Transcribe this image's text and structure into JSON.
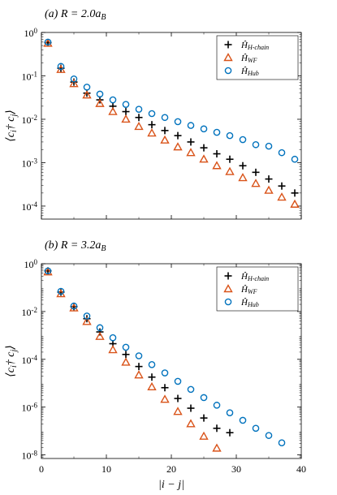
{
  "chart_data": [
    {
      "type": "scatter",
      "title": "(a) R = 2.0a_B",
      "xlabel": "|i − j|",
      "ylabel": "⟨c_i† c_j⟩",
      "xlim": [
        0,
        40
      ],
      "ylim": [
        5e-05,
        1
      ],
      "yscale": "log",
      "xticks": [
        "0",
        "10",
        "20",
        "30",
        "40"
      ],
      "yticks": [
        "10^0",
        "10^-1",
        "10^-2",
        "10^-3",
        "10^-4"
      ],
      "legend_position": "top-right",
      "series": [
        {
          "name": "Ĥ_H-chain",
          "marker": "plus",
          "color": "#000000",
          "x": [
            1,
            3,
            5,
            7,
            9,
            11,
            13,
            15,
            17,
            19,
            21,
            23,
            25,
            27,
            29,
            31,
            33,
            35,
            37,
            39
          ],
          "y": [
            0.58,
            0.15,
            0.072,
            0.04,
            0.028,
            0.02,
            0.015,
            0.011,
            0.0075,
            0.0055,
            0.0042,
            0.003,
            0.0022,
            0.0016,
            0.0012,
            0.00085,
            0.0006,
            0.00042,
            0.00029,
            0.0002
          ]
        },
        {
          "name": "Ĥ_WF",
          "marker": "triangle",
          "color": "#d95319",
          "x": [
            1,
            3,
            5,
            7,
            9,
            11,
            13,
            15,
            17,
            19,
            21,
            23,
            25,
            27,
            29,
            31,
            33,
            35,
            37,
            39
          ],
          "y": [
            0.56,
            0.14,
            0.066,
            0.036,
            0.023,
            0.015,
            0.01,
            0.0068,
            0.0048,
            0.0033,
            0.0023,
            0.0017,
            0.0012,
            0.00085,
            0.00062,
            0.00045,
            0.00033,
            0.00023,
            0.00016,
            0.00011
          ]
        },
        {
          "name": "Ĥ_Hub",
          "marker": "circle",
          "color": "#0072bd",
          "x": [
            1,
            3,
            5,
            7,
            9,
            11,
            13,
            15,
            17,
            19,
            21,
            23,
            25,
            27,
            29,
            31,
            33,
            35,
            37,
            39
          ],
          "y": [
            0.6,
            0.165,
            0.085,
            0.055,
            0.038,
            0.028,
            0.022,
            0.017,
            0.0135,
            0.011,
            0.0088,
            0.0072,
            0.006,
            0.005,
            0.0042,
            0.0034,
            0.0026,
            0.0024,
            0.0017,
            0.0012
          ]
        }
      ]
    },
    {
      "type": "scatter",
      "title": "(b) R = 3.2a_B",
      "xlabel": "|i − j|",
      "ylabel": "⟨c_i† c_j⟩",
      "xlim": [
        0,
        40
      ],
      "ylim": [
        7e-09,
        1
      ],
      "yscale": "log",
      "xticks": [
        "0",
        "10",
        "20",
        "30",
        "40"
      ],
      "yticks": [
        "10^0",
        "10^-2",
        "10^-4",
        "10^-6",
        "10^-8"
      ],
      "legend_position": "top-right",
      "series": [
        {
          "name": "Ĥ_H-chain",
          "marker": "plus",
          "color": "#000000",
          "x": [
            1,
            3,
            5,
            7,
            9,
            11,
            13,
            15,
            17,
            19,
            21,
            23,
            25,
            27,
            29
          ],
          "y": [
            0.5,
            0.065,
            0.016,
            0.005,
            0.0014,
            0.00045,
            0.00016,
            5e-05,
            1.8e-05,
            6.5e-06,
            2.3e-06,
            9e-07,
            3.5e-07,
            1.3e-07,
            8.5e-08
          ]
        },
        {
          "name": "Ĥ_WF",
          "marker": "triangle",
          "color": "#d95319",
          "x": [
            1,
            3,
            5,
            7,
            9,
            11,
            13,
            15,
            17,
            19,
            21,
            23,
            25,
            27
          ],
          "y": [
            0.45,
            0.055,
            0.014,
            0.0038,
            0.0009,
            0.00025,
            7.5e-05,
            2.2e-05,
            7e-06,
            2.1e-06,
            6.5e-07,
            2e-07,
            6e-08,
            1.9e-08
          ]
        },
        {
          "name": "Ĥ_Hub",
          "marker": "circle",
          "color": "#0072bd",
          "x": [
            1,
            3,
            5,
            7,
            9,
            11,
            13,
            15,
            17,
            19,
            21,
            23,
            25,
            27,
            29,
            31,
            33,
            35,
            37
          ],
          "y": [
            0.5,
            0.07,
            0.017,
            0.0065,
            0.0021,
            0.0008,
            0.00032,
            0.00014,
            6e-05,
            2.7e-05,
            1.2e-05,
            5.5e-06,
            2.5e-06,
            1.2e-06,
            5.8e-07,
            2.8e-07,
            1.3e-07,
            6.5e-08,
            3.2e-08
          ]
        }
      ]
    }
  ]
}
